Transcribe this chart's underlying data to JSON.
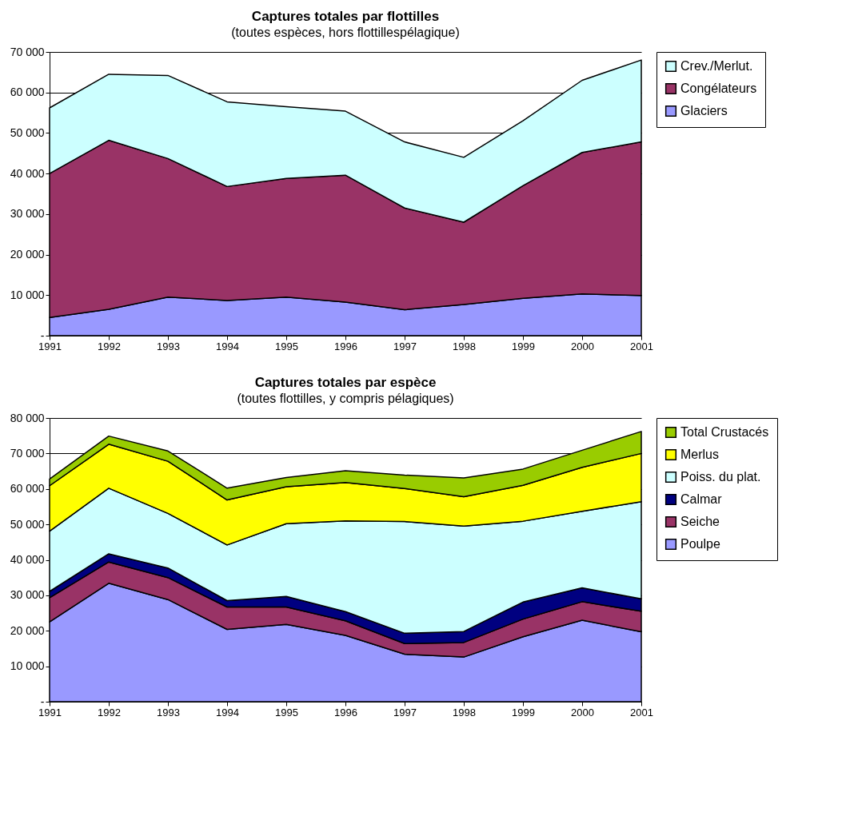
{
  "chart_data": [
    {
      "type": "area",
      "stacked": true,
      "title": "Captures totales par flottilles",
      "subtitle": "(toutes espèces, hors flottillespélagique)",
      "categories": [
        "1991",
        "1992",
        "1993",
        "1994",
        "1995",
        "1996",
        "1997",
        "1998",
        "1999",
        "2000",
        "2001"
      ],
      "ylim": [
        0,
        70000
      ],
      "yticks": [
        {
          "value": 0,
          "label": "-"
        },
        {
          "value": 10000,
          "label": "10 000"
        },
        {
          "value": 20000,
          "label": "20 000"
        },
        {
          "value": 30000,
          "label": "30 000"
        },
        {
          "value": 40000,
          "label": "40 000"
        },
        {
          "value": 50000,
          "label": "50 000"
        },
        {
          "value": 60000,
          "label": "60 000"
        },
        {
          "value": 70000,
          "label": "70 000"
        }
      ],
      "grid": "y",
      "legend": "right",
      "series": [
        {
          "name": "Glaciers",
          "color": "#9999ff",
          "values": [
            4500,
            6500,
            9500,
            8700,
            9500,
            8300,
            6400,
            7700,
            9200,
            10300,
            9900
          ]
        },
        {
          "name": "Congélateurs",
          "color": "#993366",
          "values": [
            35500,
            41700,
            34200,
            28100,
            29300,
            31300,
            25100,
            20300,
            27800,
            34900,
            37900
          ]
        },
        {
          "name": "Crev./Merlut.",
          "color": "#ccffff",
          "values": [
            16200,
            16300,
            20500,
            20900,
            17700,
            15800,
            16300,
            16000,
            16000,
            17800,
            20200
          ]
        }
      ]
    },
    {
      "type": "area",
      "stacked": true,
      "title": "Captures totales par espèce",
      "subtitle": "(toutes flottilles, y compris pélagiques)",
      "categories": [
        "1991",
        "1992",
        "1993",
        "1994",
        "1995",
        "1996",
        "1997",
        "1998",
        "1999",
        "2000",
        "2001"
      ],
      "ylim": [
        0,
        80000
      ],
      "yticks": [
        {
          "value": 0,
          "label": "-"
        },
        {
          "value": 10000,
          "label": "10 000"
        },
        {
          "value": 20000,
          "label": "20 000"
        },
        {
          "value": 30000,
          "label": "30 000"
        },
        {
          "value": 40000,
          "label": "40 000"
        },
        {
          "value": 50000,
          "label": "50 000"
        },
        {
          "value": 60000,
          "label": "60 000"
        },
        {
          "value": 70000,
          "label": "70 000"
        },
        {
          "value": 80000,
          "label": "80 000"
        }
      ],
      "grid": "y",
      "legend": "right",
      "series": [
        {
          "name": "Poulpe",
          "color": "#9999ff",
          "values": [
            22500,
            33400,
            28800,
            20400,
            21800,
            18700,
            13400,
            12600,
            18300,
            23000,
            19700
          ]
        },
        {
          "name": "Seiche",
          "color": "#993366",
          "values": [
            6800,
            6000,
            6200,
            6300,
            4900,
            4100,
            3000,
            4100,
            5000,
            5200,
            5800
          ]
        },
        {
          "name": "Calmar",
          "color": "#000080",
          "values": [
            1800,
            2300,
            2700,
            1800,
            3000,
            2600,
            2900,
            3100,
            4800,
            3900,
            3500
          ]
        },
        {
          "name": "Poiss. du plat.",
          "color": "#ccffff",
          "values": [
            17000,
            18500,
            15400,
            15700,
            20500,
            25600,
            31500,
            29700,
            22800,
            21600,
            27400
          ]
        },
        {
          "name": "Merlus",
          "color": "#ffff00",
          "values": [
            12800,
            12400,
            14700,
            12700,
            10400,
            10800,
            9300,
            8300,
            10100,
            12400,
            13600
          ]
        },
        {
          "name": "Total Crustacés",
          "color": "#99cc00",
          "values": [
            1900,
            2300,
            2900,
            3300,
            2600,
            3300,
            3800,
            5300,
            4600,
            4800,
            6200
          ]
        }
      ]
    }
  ]
}
